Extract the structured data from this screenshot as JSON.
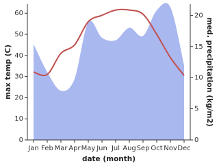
{
  "chart_data": {
    "type": "line-area",
    "x_label": "date (month)",
    "y_label": "max temp (C)",
    "y2_label": "med. precipitation (kg/m2)",
    "categories": [
      "Jan",
      "Feb",
      "Mar",
      "Apr",
      "May",
      "Jun",
      "Jul",
      "Aug",
      "Sep",
      "Oct",
      "Nov",
      "Dec"
    ],
    "ylim": [
      0,
      64.3
    ],
    "yticks": [
      0,
      10,
      20,
      30,
      40,
      50,
      60
    ],
    "y2lim": [
      0,
      21.8
    ],
    "y2ticks": [
      0,
      5,
      10,
      15,
      20
    ],
    "series": [
      {
        "name": "max temp",
        "color": "#c0504d",
        "values": [
          32.1,
          31,
          41,
          45,
          56,
          59,
          61.5,
          61.5,
          59.5,
          50,
          39,
          30.5
        ]
      },
      {
        "name": "med. precipitation",
        "color": "#aab8f0",
        "axis": "y2",
        "values": [
          15.4,
          10.9,
          7.9,
          9.8,
          18.9,
          16.4,
          16.0,
          18.0,
          16.7,
          20.8,
          21.3,
          12.0
        ]
      }
    ]
  }
}
